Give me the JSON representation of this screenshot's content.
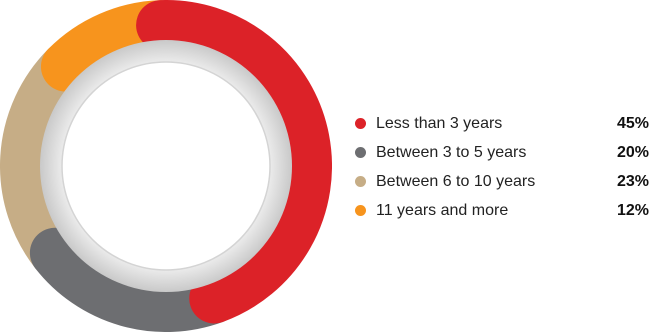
{
  "chart_data": {
    "type": "donut",
    "title": "",
    "legend_position": "right",
    "slices": [
      {
        "label": "Less than 3 years",
        "value": 45,
        "display": "45%",
        "color": "#dc2228"
      },
      {
        "label": "Between 3 to 5 years",
        "value": 20,
        "display": "20%",
        "color": "#6d6e71"
      },
      {
        "label": "Between 6 to 10 years",
        "value": 23,
        "display": "23%",
        "color": "#c6ad86"
      },
      {
        "label": "11 years and more",
        "value": 12,
        "display": "12%",
        "color": "#f7941d"
      }
    ]
  }
}
